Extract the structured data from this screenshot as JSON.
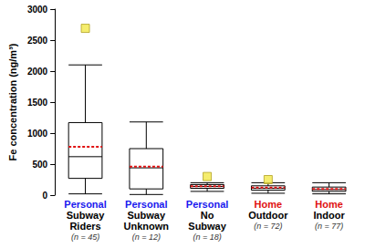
{
  "chart_data": {
    "type": "boxplot",
    "y_label": "Fe concentration (ng/m³)",
    "categories": [
      "Personal\nSubway\nRiders\n(n = 45)",
      "Personal\nSubway\nUnknown\n(n = 12)",
      "Personal\nNo\nSubway\n(n = 18)",
      "Home\nOutdoor\n(n = 72)",
      "Home\nIndoor\n(n = 77)"
    ],
    "category_colors": [
      "#1a1aee",
      "#1a1aee",
      "#1a1aee",
      "#e01010",
      "#e01010"
    ],
    "boxes": [
      [
        20,
        270,
        620,
        1170,
        2100
      ],
      [
        10,
        100,
        440,
        750,
        1180
      ],
      [
        60,
        110,
        140,
        170,
        200
      ],
      [
        30,
        80,
        110,
        150,
        200
      ],
      [
        20,
        60,
        90,
        130,
        200
      ]
    ],
    "means": [
      780,
      460,
      145,
      120,
      100
    ],
    "outliers": [
      [
        2690
      ],
      [],
      [
        300
      ],
      [
        250
      ],
      []
    ],
    "ylim": [
      0,
      3000
    ],
    "yticks": [
      0,
      500,
      1000,
      1500,
      2000,
      2500,
      3000
    ]
  }
}
